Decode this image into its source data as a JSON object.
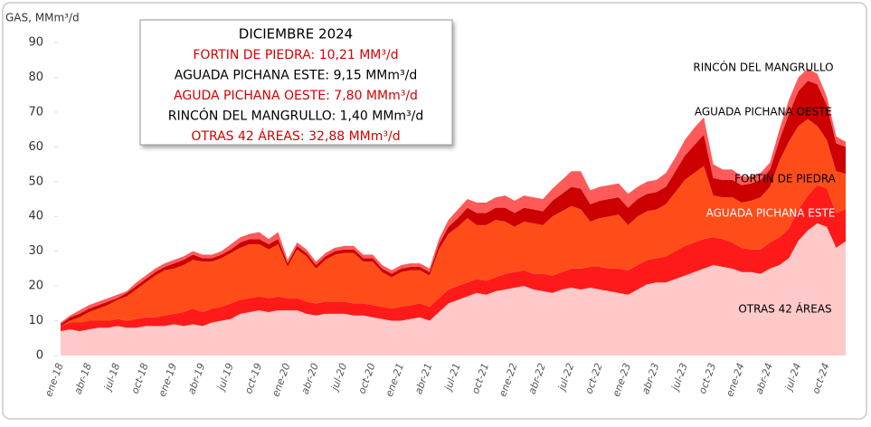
{
  "chart_data": {
    "type": "stacked_area",
    "y_axis_label": "GAS, MMm³/d",
    "annotation": {
      "title": "DICIEMBRE 2024",
      "lines": [
        {
          "text": "FORTIN DE PIEDRA: 10,21 MM³/d",
          "color": "#d40000"
        },
        {
          "text": "AGUADA PICHANA ESTE: 9,15 MMm³/d",
          "color": "#000000"
        },
        {
          "text": "AGUDA PICHANA OESTE: 7,80 MMm³/d",
          "color": "#d40000"
        },
        {
          "text": "RINCÓN DEL MANGRULLO: 1,40 MMm³/d",
          "color": "#000000"
        },
        {
          "text": "OTRAS 42 ÁREAS: 32,88 MMm³/d",
          "color": "#d40000"
        }
      ]
    },
    "categories": [
      "ene-18",
      null,
      null,
      "abr-18",
      null,
      null,
      "jul-18",
      null,
      null,
      "oct-18",
      null,
      null,
      "ene-19",
      null,
      null,
      "abr-19",
      null,
      null,
      "jul-19",
      null,
      null,
      "oct-19",
      null,
      null,
      "ene-20",
      null,
      null,
      "abr-20",
      null,
      null,
      "jul-20",
      null,
      null,
      "oct-20",
      null,
      null,
      "ene-21",
      null,
      null,
      "abr-21",
      null,
      null,
      "jul-21",
      null,
      null,
      "oct-21",
      null,
      null,
      "ene-22",
      null,
      null,
      "abr-22",
      null,
      null,
      "jul-22",
      null,
      null,
      "oct-22",
      null,
      null,
      "ene-23",
      null,
      null,
      "abr-23",
      null,
      null,
      "jul-23",
      null,
      null,
      "oct-23",
      null,
      null,
      "ene-24",
      null,
      null,
      "abr-24",
      null,
      null,
      "jul-24",
      null,
      null,
      "oct-24",
      null,
      null
    ],
    "series": [
      {
        "name": "OTRAS 42 ÁREAS",
        "color": "#ffc9c9",
        "label_color": "#000000",
        "values": [
          7,
          7.5,
          7,
          7.5,
          8,
          8,
          8.5,
          8,
          8,
          8.5,
          8.5,
          8.5,
          9,
          8.5,
          9,
          8.5,
          9.5,
          10,
          10.5,
          12,
          12.5,
          13,
          12.5,
          13,
          13,
          13,
          12,
          11.5,
          12,
          12,
          12,
          11.5,
          11.5,
          11,
          10.5,
          10,
          10,
          10.5,
          11,
          10,
          12.5,
          15,
          16,
          17,
          18,
          17.5,
          18.5,
          19,
          19.5,
          20,
          19,
          18.5,
          18,
          19,
          19.5,
          19,
          19.5,
          19,
          18.5,
          18,
          17.5,
          19,
          20.5,
          21,
          21,
          22,
          23,
          24,
          25,
          26,
          25.5,
          25,
          24,
          24,
          23.5,
          25,
          26,
          28,
          33,
          36,
          38,
          37,
          31,
          32.88
        ]
      },
      {
        "name": "AGUADA PICHANA ESTE",
        "color": "#ff1a1a",
        "label_color": "#ffffff",
        "values": [
          1.5,
          2,
          2.5,
          2.5,
          2,
          2,
          2,
          2,
          2.5,
          2.5,
          2.5,
          3,
          3,
          4,
          4.5,
          4,
          4,
          4,
          4.5,
          4,
          4,
          4,
          4,
          4,
          3.5,
          3.5,
          3.5,
          3.5,
          3.5,
          3.5,
          3.5,
          3.5,
          3.5,
          3.5,
          3.5,
          3.5,
          4,
          4,
          4,
          4,
          4,
          4,
          4,
          4,
          4,
          4,
          4,
          4.5,
          4.5,
          4.5,
          4.5,
          5,
          5,
          5,
          5.5,
          6,
          6,
          6.5,
          6.5,
          7,
          7,
          7,
          7,
          7,
          7.5,
          8,
          8.5,
          8.5,
          8.5,
          8,
          8,
          7.5,
          7,
          6.5,
          7,
          7.5,
          8,
          8.5,
          9,
          10,
          11,
          11,
          10,
          9.15
        ]
      },
      {
        "name": "FORTIN DE PIEDRA",
        "color": "#ff4d1a",
        "label_color": "#000000",
        "values": [
          0,
          0.5,
          1.5,
          2.5,
          3.5,
          4.5,
          5.5,
          7,
          8.5,
          10,
          12,
          13,
          13,
          13.5,
          14,
          14.5,
          13.5,
          14,
          14.5,
          15,
          15.5,
          15,
          14,
          15,
          9,
          14,
          13,
          10,
          12,
          13.5,
          14,
          14.5,
          12,
          12.5,
          10,
          9,
          10,
          10,
          9.5,
          9,
          14,
          16,
          17,
          18.5,
          15.5,
          16,
          16.5,
          15,
          13,
          14,
          14.5,
          14,
          17,
          17.5,
          18,
          17,
          13,
          14,
          15,
          15.5,
          13,
          14,
          14,
          14,
          15,
          17,
          19,
          20,
          21,
          12,
          12,
          13,
          13,
          14,
          15,
          16,
          22,
          25,
          24,
          22,
          17,
          14,
          12,
          10.21
        ]
      },
      {
        "name": "AGUADA PICHANA OESTE",
        "color": "#cc0000",
        "label_color": "#000000",
        "values": [
          0.5,
          1,
          1,
          1,
          1,
          1,
          0.5,
          1,
          1,
          1,
          1,
          1,
          1.5,
          1.5,
          1.5,
          1,
          1,
          1,
          1,
          1.5,
          1.5,
          1.5,
          1.5,
          1.5,
          1,
          1,
          1,
          1,
          1,
          1,
          1,
          1,
          1,
          1,
          1,
          1,
          1,
          1,
          1,
          1,
          1.5,
          2,
          2.5,
          3,
          3.5,
          3.5,
          3.5,
          4,
          4,
          4,
          4,
          4,
          4.5,
          5,
          5.5,
          6,
          5,
          5,
          5,
          5,
          5,
          5,
          5,
          5,
          5,
          6,
          7,
          8,
          9,
          5,
          5,
          5,
          5,
          5,
          5,
          5,
          6,
          8,
          10,
          11,
          12,
          10,
          8,
          7.8
        ]
      },
      {
        "name": "RINCÓN DEL MANGRULLO",
        "color": "#ff5a5a",
        "label_color": "#000000",
        "values": [
          0.5,
          0.5,
          1,
          1,
          1,
          1,
          1,
          0.5,
          1,
          1,
          1,
          1,
          1,
          1,
          1,
          1,
          1,
          1,
          1.5,
          1.5,
          1.5,
          2,
          1.5,
          2,
          1,
          1,
          1,
          1,
          1,
          1,
          1,
          1,
          1,
          1,
          1,
          1,
          1,
          1,
          1,
          1,
          1.5,
          2,
          2.5,
          2.5,
          3,
          3,
          3,
          3.5,
          3.5,
          3.5,
          3.5,
          3.5,
          3.5,
          4,
          4.5,
          5,
          4,
          4,
          4,
          4,
          4,
          3.5,
          3.5,
          3.5,
          4,
          4,
          4.5,
          5,
          5,
          4,
          3,
          3,
          2.5,
          2,
          2,
          2,
          3,
          4,
          4,
          3.5,
          3,
          2.5,
          2,
          1.4
        ]
      }
    ],
    "ylim": [
      0,
      90
    ],
    "yticks": [
      0,
      10,
      20,
      30,
      40,
      50,
      60,
      70,
      80,
      90
    ]
  }
}
